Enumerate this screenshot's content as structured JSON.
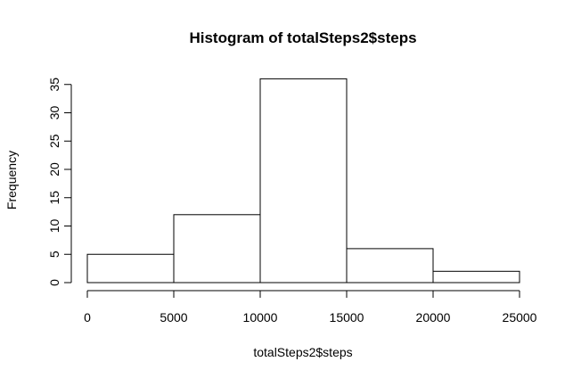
{
  "chart_data": {
    "type": "bar",
    "title": "Histogram of totalSteps2$steps",
    "xlabel": "totalSteps2$steps",
    "ylabel": "Frequency",
    "bins": [
      {
        "from": 0,
        "to": 5000,
        "count": 5
      },
      {
        "from": 5000,
        "to": 10000,
        "count": 12
      },
      {
        "from": 10000,
        "to": 15000,
        "count": 36
      },
      {
        "from": 15000,
        "to": 20000,
        "count": 6
      },
      {
        "from": 20000,
        "to": 25000,
        "count": 2
      }
    ],
    "x_ticks": [
      0,
      5000,
      10000,
      15000,
      20000,
      25000
    ],
    "y_ticks": [
      0,
      5,
      10,
      15,
      20,
      25,
      30,
      35
    ],
    "xlim": [
      0,
      25000
    ],
    "ylim": [
      0,
      36
    ],
    "grid": false,
    "bar_fill": "#ffffff",
    "bar_stroke": "#000000"
  }
}
